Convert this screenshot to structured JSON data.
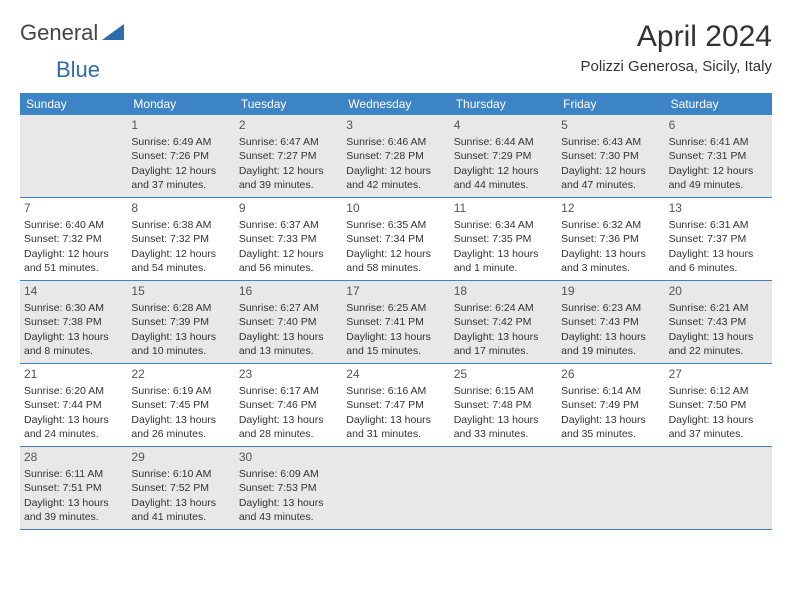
{
  "logo": {
    "text1": "General",
    "text2": "Blue"
  },
  "title": "April 2024",
  "location": "Polizzi Generosa, Sicily, Italy",
  "colors": {
    "header_bg": "#3d84c6",
    "divider": "#3d84c6",
    "shaded_bg": "#e8e8e8",
    "logo_blue": "#2d6da9"
  },
  "fonts": {
    "title_size": 30,
    "location_size": 15,
    "weekday_size": 12,
    "daynum_size": 12,
    "body_size": 10.5
  },
  "weekdays": [
    "Sunday",
    "Monday",
    "Tuesday",
    "Wednesday",
    "Thursday",
    "Friday",
    "Saturday"
  ],
  "weeks": [
    [
      {
        "day": "",
        "lines": []
      },
      {
        "day": "1",
        "lines": [
          "Sunrise: 6:49 AM",
          "Sunset: 7:26 PM",
          "Daylight: 12 hours",
          "and 37 minutes."
        ]
      },
      {
        "day": "2",
        "lines": [
          "Sunrise: 6:47 AM",
          "Sunset: 7:27 PM",
          "Daylight: 12 hours",
          "and 39 minutes."
        ]
      },
      {
        "day": "3",
        "lines": [
          "Sunrise: 6:46 AM",
          "Sunset: 7:28 PM",
          "Daylight: 12 hours",
          "and 42 minutes."
        ]
      },
      {
        "day": "4",
        "lines": [
          "Sunrise: 6:44 AM",
          "Sunset: 7:29 PM",
          "Daylight: 12 hours",
          "and 44 minutes."
        ]
      },
      {
        "day": "5",
        "lines": [
          "Sunrise: 6:43 AM",
          "Sunset: 7:30 PM",
          "Daylight: 12 hours",
          "and 47 minutes."
        ]
      },
      {
        "day": "6",
        "lines": [
          "Sunrise: 6:41 AM",
          "Sunset: 7:31 PM",
          "Daylight: 12 hours",
          "and 49 minutes."
        ]
      }
    ],
    [
      {
        "day": "7",
        "lines": [
          "Sunrise: 6:40 AM",
          "Sunset: 7:32 PM",
          "Daylight: 12 hours",
          "and 51 minutes."
        ]
      },
      {
        "day": "8",
        "lines": [
          "Sunrise: 6:38 AM",
          "Sunset: 7:32 PM",
          "Daylight: 12 hours",
          "and 54 minutes."
        ]
      },
      {
        "day": "9",
        "lines": [
          "Sunrise: 6:37 AM",
          "Sunset: 7:33 PM",
          "Daylight: 12 hours",
          "and 56 minutes."
        ]
      },
      {
        "day": "10",
        "lines": [
          "Sunrise: 6:35 AM",
          "Sunset: 7:34 PM",
          "Daylight: 12 hours",
          "and 58 minutes."
        ]
      },
      {
        "day": "11",
        "lines": [
          "Sunrise: 6:34 AM",
          "Sunset: 7:35 PM",
          "Daylight: 13 hours",
          "and 1 minute."
        ]
      },
      {
        "day": "12",
        "lines": [
          "Sunrise: 6:32 AM",
          "Sunset: 7:36 PM",
          "Daylight: 13 hours",
          "and 3 minutes."
        ]
      },
      {
        "day": "13",
        "lines": [
          "Sunrise: 6:31 AM",
          "Sunset: 7:37 PM",
          "Daylight: 13 hours",
          "and 6 minutes."
        ]
      }
    ],
    [
      {
        "day": "14",
        "lines": [
          "Sunrise: 6:30 AM",
          "Sunset: 7:38 PM",
          "Daylight: 13 hours",
          "and 8 minutes."
        ]
      },
      {
        "day": "15",
        "lines": [
          "Sunrise: 6:28 AM",
          "Sunset: 7:39 PM",
          "Daylight: 13 hours",
          "and 10 minutes."
        ]
      },
      {
        "day": "16",
        "lines": [
          "Sunrise: 6:27 AM",
          "Sunset: 7:40 PM",
          "Daylight: 13 hours",
          "and 13 minutes."
        ]
      },
      {
        "day": "17",
        "lines": [
          "Sunrise: 6:25 AM",
          "Sunset: 7:41 PM",
          "Daylight: 13 hours",
          "and 15 minutes."
        ]
      },
      {
        "day": "18",
        "lines": [
          "Sunrise: 6:24 AM",
          "Sunset: 7:42 PM",
          "Daylight: 13 hours",
          "and 17 minutes."
        ]
      },
      {
        "day": "19",
        "lines": [
          "Sunrise: 6:23 AM",
          "Sunset: 7:43 PM",
          "Daylight: 13 hours",
          "and 19 minutes."
        ]
      },
      {
        "day": "20",
        "lines": [
          "Sunrise: 6:21 AM",
          "Sunset: 7:43 PM",
          "Daylight: 13 hours",
          "and 22 minutes."
        ]
      }
    ],
    [
      {
        "day": "21",
        "lines": [
          "Sunrise: 6:20 AM",
          "Sunset: 7:44 PM",
          "Daylight: 13 hours",
          "and 24 minutes."
        ]
      },
      {
        "day": "22",
        "lines": [
          "Sunrise: 6:19 AM",
          "Sunset: 7:45 PM",
          "Daylight: 13 hours",
          "and 26 minutes."
        ]
      },
      {
        "day": "23",
        "lines": [
          "Sunrise: 6:17 AM",
          "Sunset: 7:46 PM",
          "Daylight: 13 hours",
          "and 28 minutes."
        ]
      },
      {
        "day": "24",
        "lines": [
          "Sunrise: 6:16 AM",
          "Sunset: 7:47 PM",
          "Daylight: 13 hours",
          "and 31 minutes."
        ]
      },
      {
        "day": "25",
        "lines": [
          "Sunrise: 6:15 AM",
          "Sunset: 7:48 PM",
          "Daylight: 13 hours",
          "and 33 minutes."
        ]
      },
      {
        "day": "26",
        "lines": [
          "Sunrise: 6:14 AM",
          "Sunset: 7:49 PM",
          "Daylight: 13 hours",
          "and 35 minutes."
        ]
      },
      {
        "day": "27",
        "lines": [
          "Sunrise: 6:12 AM",
          "Sunset: 7:50 PM",
          "Daylight: 13 hours",
          "and 37 minutes."
        ]
      }
    ],
    [
      {
        "day": "28",
        "lines": [
          "Sunrise: 6:11 AM",
          "Sunset: 7:51 PM",
          "Daylight: 13 hours",
          "and 39 minutes."
        ]
      },
      {
        "day": "29",
        "lines": [
          "Sunrise: 6:10 AM",
          "Sunset: 7:52 PM",
          "Daylight: 13 hours",
          "and 41 minutes."
        ]
      },
      {
        "day": "30",
        "lines": [
          "Sunrise: 6:09 AM",
          "Sunset: 7:53 PM",
          "Daylight: 13 hours",
          "and 43 minutes."
        ]
      },
      {
        "day": "",
        "lines": []
      },
      {
        "day": "",
        "lines": []
      },
      {
        "day": "",
        "lines": []
      },
      {
        "day": "",
        "lines": []
      }
    ]
  ],
  "shaded_rows": [
    0,
    2,
    4
  ]
}
